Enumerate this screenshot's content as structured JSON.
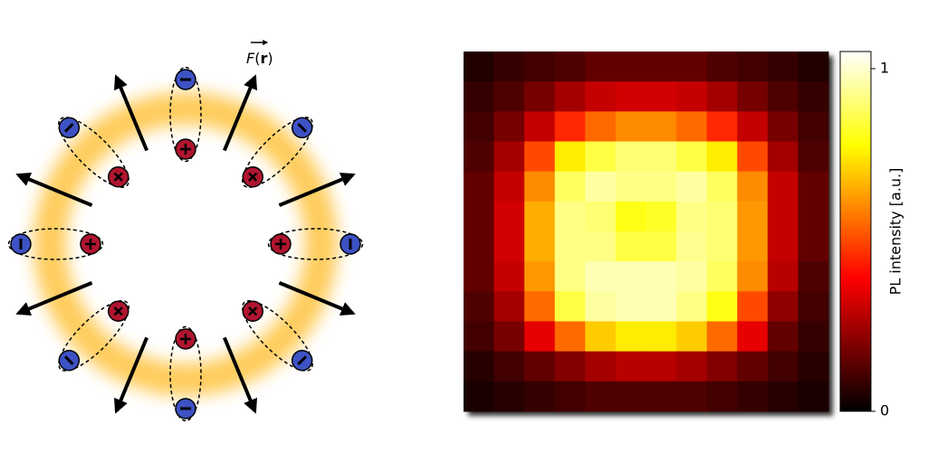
{
  "diagram": {
    "force_symbol": "F",
    "paren_open": "(",
    "force_argument": "r",
    "paren_close": ")"
  },
  "chart_data": {
    "type": "heatmap",
    "values": [
      [
        0.05,
        0.08,
        0.1,
        0.12,
        0.15,
        0.15,
        0.15,
        0.15,
        0.12,
        0.1,
        0.08,
        0.05
      ],
      [
        0.08,
        0.12,
        0.18,
        0.25,
        0.3,
        0.32,
        0.32,
        0.3,
        0.25,
        0.18,
        0.12,
        0.08
      ],
      [
        0.1,
        0.18,
        0.3,
        0.45,
        0.55,
        0.6,
        0.6,
        0.55,
        0.45,
        0.3,
        0.18,
        0.1
      ],
      [
        0.12,
        0.25,
        0.5,
        0.75,
        0.85,
        0.9,
        0.9,
        0.85,
        0.75,
        0.5,
        0.25,
        0.12
      ],
      [
        0.15,
        0.3,
        0.6,
        0.88,
        0.95,
        0.92,
        0.92,
        0.95,
        0.88,
        0.6,
        0.3,
        0.15
      ],
      [
        0.15,
        0.32,
        0.65,
        0.92,
        0.9,
        0.8,
        0.82,
        0.92,
        0.9,
        0.62,
        0.3,
        0.15
      ],
      [
        0.15,
        0.32,
        0.65,
        0.92,
        0.92,
        0.85,
        0.85,
        0.93,
        0.9,
        0.62,
        0.3,
        0.15
      ],
      [
        0.15,
        0.3,
        0.62,
        0.92,
        0.97,
        0.97,
        0.97,
        0.95,
        0.88,
        0.6,
        0.28,
        0.12
      ],
      [
        0.12,
        0.25,
        0.55,
        0.85,
        0.95,
        0.97,
        0.97,
        0.92,
        0.8,
        0.5,
        0.22,
        0.1
      ],
      [
        0.1,
        0.18,
        0.35,
        0.55,
        0.7,
        0.75,
        0.75,
        0.7,
        0.55,
        0.35,
        0.15,
        0.08
      ],
      [
        0.06,
        0.1,
        0.15,
        0.2,
        0.25,
        0.28,
        0.28,
        0.25,
        0.2,
        0.15,
        0.1,
        0.06
      ],
      [
        0.04,
        0.06,
        0.08,
        0.1,
        0.12,
        0.12,
        0.12,
        0.12,
        0.1,
        0.08,
        0.06,
        0.04
      ]
    ],
    "colormap": "hot",
    "colorbar": {
      "label": "PL intensity [a.u.]",
      "lim": [
        0,
        1.05
      ],
      "ticks": [
        0,
        1
      ]
    }
  }
}
